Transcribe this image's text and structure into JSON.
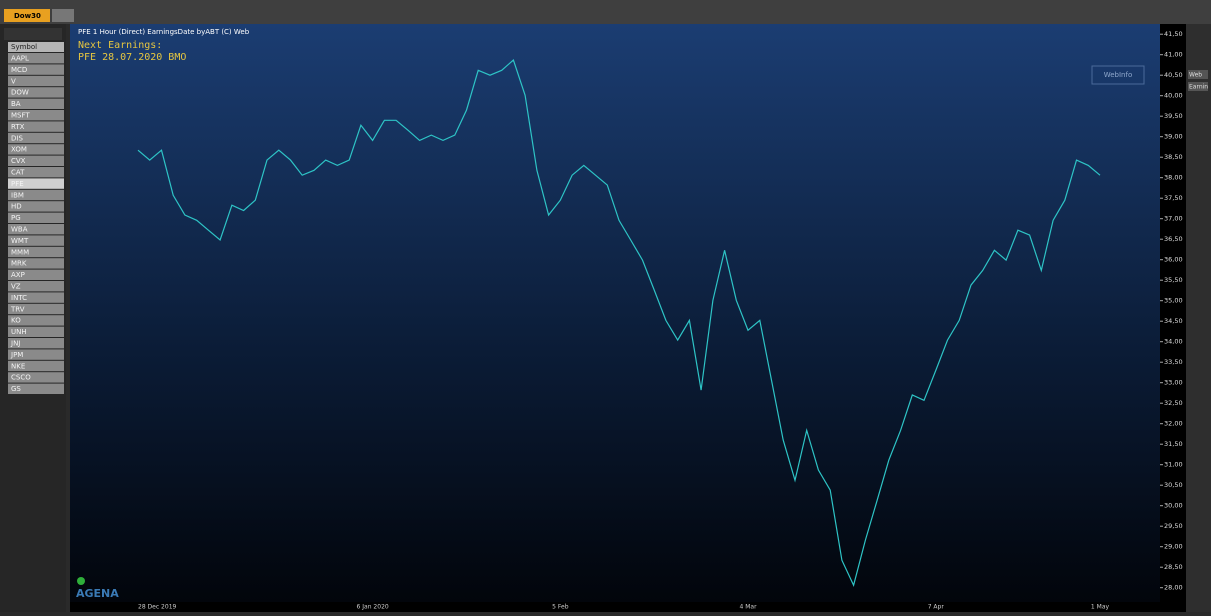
{
  "header": {
    "tabs": [
      "Dow30"
    ]
  },
  "sidebar": {
    "header": "Symbol",
    "symbols": [
      "AAPL",
      "MCD",
      "V",
      "DOW",
      "BA",
      "MSFT",
      "RTX",
      "DIS",
      "XOM",
      "CVX",
      "CAT",
      "PFE",
      "IBM",
      "HD",
      "PG",
      "WBA",
      "WMT",
      "MMM",
      "MRK",
      "AXP",
      "VZ",
      "INTC",
      "TRV",
      "KO",
      "UNH",
      "JNJ",
      "JPM",
      "NKE",
      "CSCO",
      "GS"
    ]
  },
  "right_panel": {
    "buttons": [
      "Web",
      "Earnin"
    ]
  },
  "chart_data": {
    "type": "line",
    "title": "PFE 1 Hour (Direct)   EarningsDate byABT (C)   Web",
    "annotations": [
      "Next Earnings:",
      "PFE 28.07.2020 BMO"
    ],
    "button": "WebInfo",
    "logo": "AGENA",
    "categories": [
      "28 Dec 2019",
      null,
      null,
      null,
      null,
      null,
      null,
      null,
      null,
      null,
      null,
      null,
      null,
      null,
      null,
      null,
      null,
      null,
      null,
      null,
      "6 Jan 2020",
      null,
      null,
      null,
      null,
      null,
      null,
      null,
      null,
      null,
      null,
      null,
      null,
      null,
      null,
      null,
      "5 Feb",
      null,
      null,
      null,
      null,
      null,
      null,
      null,
      null,
      null,
      null,
      null,
      null,
      null,
      null,
      null,
      "4 Mar",
      null,
      null,
      null,
      null,
      null,
      null,
      null,
      null,
      null,
      null,
      null,
      null,
      null,
      null,
      null,
      "7 Apr",
      null,
      null,
      null,
      null,
      null,
      null,
      null,
      null,
      null,
      null,
      null,
      null,
      null,
      "1 May"
    ],
    "series": [
      {
        "name": "PFE",
        "color": "#2ec4c6",
        "values": [
          38.67,
          38.43,
          38.67,
          37.57,
          37.09,
          36.96,
          36.72,
          36.48,
          37.33,
          37.2,
          37.45,
          38.43,
          38.67,
          38.43,
          38.06,
          38.18,
          38.43,
          38.3,
          38.43,
          39.28,
          38.91,
          39.4,
          39.4,
          39.16,
          38.91,
          39.04,
          38.91,
          39.04,
          39.65,
          40.62,
          40.5,
          40.62,
          40.87,
          40.01,
          38.18,
          37.09,
          37.45,
          38.06,
          38.3,
          38.06,
          37.82,
          36.96,
          36.48,
          35.99,
          35.26,
          34.52,
          34.04,
          34.52,
          32.82,
          35.01,
          36.23,
          35.01,
          34.28,
          34.52,
          33.06,
          31.6,
          30.62,
          31.84,
          30.87,
          30.38,
          28.67,
          28.06,
          29.16,
          30.13,
          31.11,
          31.84,
          32.7,
          32.57,
          33.3,
          34.04,
          34.52,
          35.38,
          35.74,
          36.23,
          35.99,
          36.72,
          36.6,
          35.74,
          36.96,
          37.45,
          38.43,
          38.3,
          38.06
        ]
      }
    ],
    "ylim": [
      27.7,
      41.7
    ],
    "yticks": [
      {
        "value": 28,
        "label": "28,00"
      },
      {
        "value": 28.5,
        "label": "28,50"
      },
      {
        "value": 29,
        "label": "29,00"
      },
      {
        "value": 29.5,
        "label": "29,50"
      },
      {
        "value": 30,
        "label": "30,00"
      },
      {
        "value": 30.5,
        "label": "30,50"
      },
      {
        "value": 31,
        "label": "31,00"
      },
      {
        "value": 31.5,
        "label": "31,50"
      },
      {
        "value": 32,
        "label": "32,00"
      },
      {
        "value": 32.5,
        "label": "32,50"
      },
      {
        "value": 33,
        "label": "33,00"
      },
      {
        "value": 33.5,
        "label": "33,50"
      },
      {
        "value": 34,
        "label": "34,00"
      },
      {
        "value": 34.5,
        "label": "34,50"
      },
      {
        "value": 35,
        "label": "35,00"
      },
      {
        "value": 35.5,
        "label": "35,50"
      },
      {
        "value": 36,
        "label": "36,00"
      },
      {
        "value": 36.5,
        "label": "36,50"
      },
      {
        "value": 37,
        "label": "37,00"
      },
      {
        "value": 37.5,
        "label": "37,50"
      },
      {
        "value": 38,
        "label": "38,00"
      },
      {
        "value": 38.5,
        "label": "38,50"
      },
      {
        "value": 39,
        "label": "39,00"
      },
      {
        "value": 39.5,
        "label": "39,50"
      },
      {
        "value": 40,
        "label": "40,00"
      },
      {
        "value": 40.5,
        "label": "40,50"
      },
      {
        "value": 41,
        "label": "41,00"
      },
      {
        "value": 41.5,
        "label": "41,50"
      }
    ],
    "grid": false
  }
}
